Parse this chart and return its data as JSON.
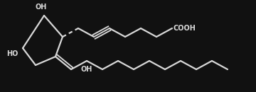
{
  "bg_color": "#111111",
  "line_color": "#d8d8d8",
  "text_color": "#d8d8d8",
  "lw": 1.6,
  "fs": 7.0,
  "figsize": [
    3.6,
    1.3
  ],
  "dpi": 100,
  "xlim": [
    0,
    360
  ],
  "ylim": [
    0,
    130
  ]
}
